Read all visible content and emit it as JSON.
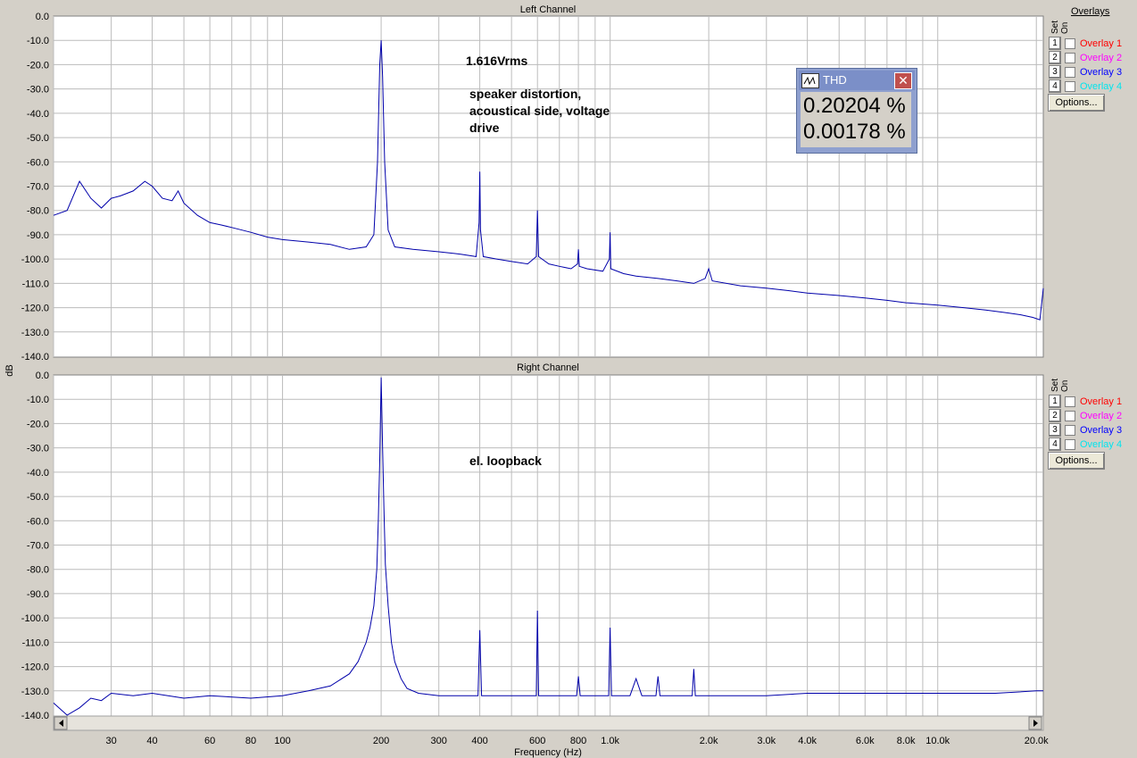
{
  "y_unit": "dB",
  "x_title": "Frequency (Hz)",
  "overlays": {
    "title": "Overlays",
    "set_label": "Set",
    "on_label": "On",
    "items": [
      {
        "num": "1",
        "label": "Overlay 1",
        "color": "#ff0000"
      },
      {
        "num": "2",
        "label": "Overlay 2",
        "color": "#ff00ff"
      },
      {
        "num": "3",
        "label": "Overlay 3",
        "color": "#0000ff"
      },
      {
        "num": "4",
        "label": "Overlay 4",
        "color": "#00e5ee"
      }
    ],
    "options_label": "Options..."
  },
  "thd": {
    "title": "THD",
    "value1": "0.20204 %",
    "value2": "0.00178 %"
  },
  "annotations": {
    "left_level": "1.616Vrms",
    "left_line1": "speaker distortion,",
    "left_line2": "acoustical side, voltage",
    "left_line3": "drive",
    "right_note": "el. loopback"
  },
  "chart_data": [
    {
      "type": "line",
      "title": "Left Channel",
      "xlabel": "Frequency (Hz)",
      "ylabel": "dB",
      "xscale": "log",
      "xlim": [
        20,
        21000
      ],
      "ylim": [
        -140,
        0
      ],
      "y_ticks": [
        "0.0",
        "-10.0",
        "-20.0",
        "-30.0",
        "-40.0",
        "-50.0",
        "-60.0",
        "-70.0",
        "-80.0",
        "-90.0",
        "-100.0",
        "-110.0",
        "-120.0",
        "-130.0",
        "-140.0"
      ],
      "x_tick_values": [
        30,
        40,
        60,
        80,
        100,
        200,
        300,
        400,
        600,
        800,
        1000,
        2000,
        3000,
        4000,
        6000,
        8000,
        10000,
        20000
      ],
      "x_tick_labels": [
        "30",
        "40",
        "60",
        "80",
        "100",
        "200",
        "300",
        "400",
        "600",
        "800",
        "1.0k",
        "2.0k",
        "3.0k",
        "4.0k",
        "6.0k",
        "8.0k",
        "10.0k",
        "20.0k"
      ],
      "grid": true,
      "color": "#0000aa",
      "series": [
        {
          "x": [
            20,
            22,
            24,
            26,
            28,
            30,
            32,
            35,
            38,
            40,
            43,
            46,
            48,
            50,
            55,
            60,
            65,
            70,
            80,
            90,
            100,
            120,
            140,
            160,
            180,
            190,
            195,
            198,
            200,
            202,
            205,
            210,
            220,
            250,
            300,
            350,
            390,
            398,
            400,
            402,
            410,
            450,
            500,
            560,
            595,
            600,
            605,
            650,
            700,
            760,
            795,
            800,
            805,
            850,
            950,
            995,
            1000,
            1005,
            1100,
            1200,
            1400,
            1600,
            1800,
            1950,
            2000,
            2050,
            2500,
            3000,
            3500,
            4000,
            5000,
            6000,
            7000,
            8000,
            10000,
            12000,
            14000,
            16000,
            18000,
            19500,
            20500,
            21000
          ],
          "y": [
            -82,
            -80,
            -68,
            -75,
            -79,
            -75,
            -74,
            -72,
            -68,
            -70,
            -75,
            -76,
            -72,
            -77,
            -82,
            -85,
            -86,
            -87,
            -89,
            -91,
            -92,
            -93,
            -94,
            -96,
            -95,
            -90,
            -60,
            -20,
            -10,
            -25,
            -60,
            -88,
            -95,
            -96,
            -97,
            -98,
            -99,
            -85,
            -64,
            -88,
            -99,
            -100,
            -101,
            -102,
            -99,
            -80,
            -99,
            -102,
            -103,
            -104,
            -102,
            -96,
            -103,
            -104,
            -105,
            -100,
            -89,
            -104,
            -106,
            -107,
            -108,
            -109,
            -110,
            -108,
            -104,
            -109,
            -111,
            -112,
            -113,
            -114,
            -115,
            -116,
            -117,
            -118,
            -119,
            -120,
            -121,
            -122,
            -123,
            -124,
            -125,
            -112
          ]
        }
      ]
    },
    {
      "type": "line",
      "title": "Right Channel",
      "xlabel": "Frequency (Hz)",
      "ylabel": "dB",
      "xscale": "log",
      "xlim": [
        20,
        21000
      ],
      "ylim": [
        -140,
        0
      ],
      "y_ticks": [
        "0.0",
        "-10.0",
        "-20.0",
        "-30.0",
        "-40.0",
        "-50.0",
        "-60.0",
        "-70.0",
        "-80.0",
        "-90.0",
        "-100.0",
        "-110.0",
        "-120.0",
        "-130.0",
        "-140.0"
      ],
      "x_tick_values": [
        30,
        40,
        60,
        80,
        100,
        200,
        300,
        400,
        600,
        800,
        1000,
        2000,
        3000,
        4000,
        6000,
        8000,
        10000,
        20000
      ],
      "x_tick_labels": [
        "30",
        "40",
        "60",
        "80",
        "100",
        "200",
        "300",
        "400",
        "600",
        "800",
        "1.0k",
        "2.0k",
        "3.0k",
        "4.0k",
        "6.0k",
        "8.0k",
        "10.0k",
        "20.0k"
      ],
      "grid": true,
      "color": "#0000aa",
      "series": [
        {
          "x": [
            20,
            22,
            24,
            26,
            28,
            30,
            35,
            40,
            50,
            60,
            80,
            100,
            120,
            140,
            160,
            170,
            180,
            185,
            190,
            194,
            196,
            198,
            200,
            202,
            204,
            206,
            210,
            215,
            220,
            230,
            240,
            260,
            300,
            350,
            395,
            400,
            405,
            450,
            500,
            595,
            600,
            605,
            700,
            790,
            800,
            810,
            900,
            990,
            1000,
            1010,
            1150,
            1200,
            1250,
            1380,
            1400,
            1420,
            1600,
            1780,
            1800,
            1820,
            2000,
            3000,
            4000,
            6000,
            8000,
            10000,
            15000,
            20000,
            21000
          ],
          "y": [
            -135,
            -140,
            -137,
            -133,
            -134,
            -131,
            -132,
            -131,
            -133,
            -132,
            -133,
            -132,
            -130,
            -128,
            -123,
            -118,
            -110,
            -104,
            -95,
            -80,
            -60,
            -35,
            -1,
            -30,
            -55,
            -78,
            -95,
            -110,
            -118,
            -125,
            -129,
            -131,
            -132,
            -132,
            -132,
            -105,
            -132,
            -132,
            -132,
            -132,
            -97,
            -132,
            -132,
            -132,
            -124,
            -132,
            -132,
            -132,
            -104,
            -132,
            -132,
            -125,
            -132,
            -132,
            -124,
            -132,
            -132,
            -132,
            -121,
            -132,
            -132,
            -132,
            -131,
            -131,
            -131,
            -131,
            -131,
            -130,
            -130
          ]
        }
      ]
    }
  ]
}
